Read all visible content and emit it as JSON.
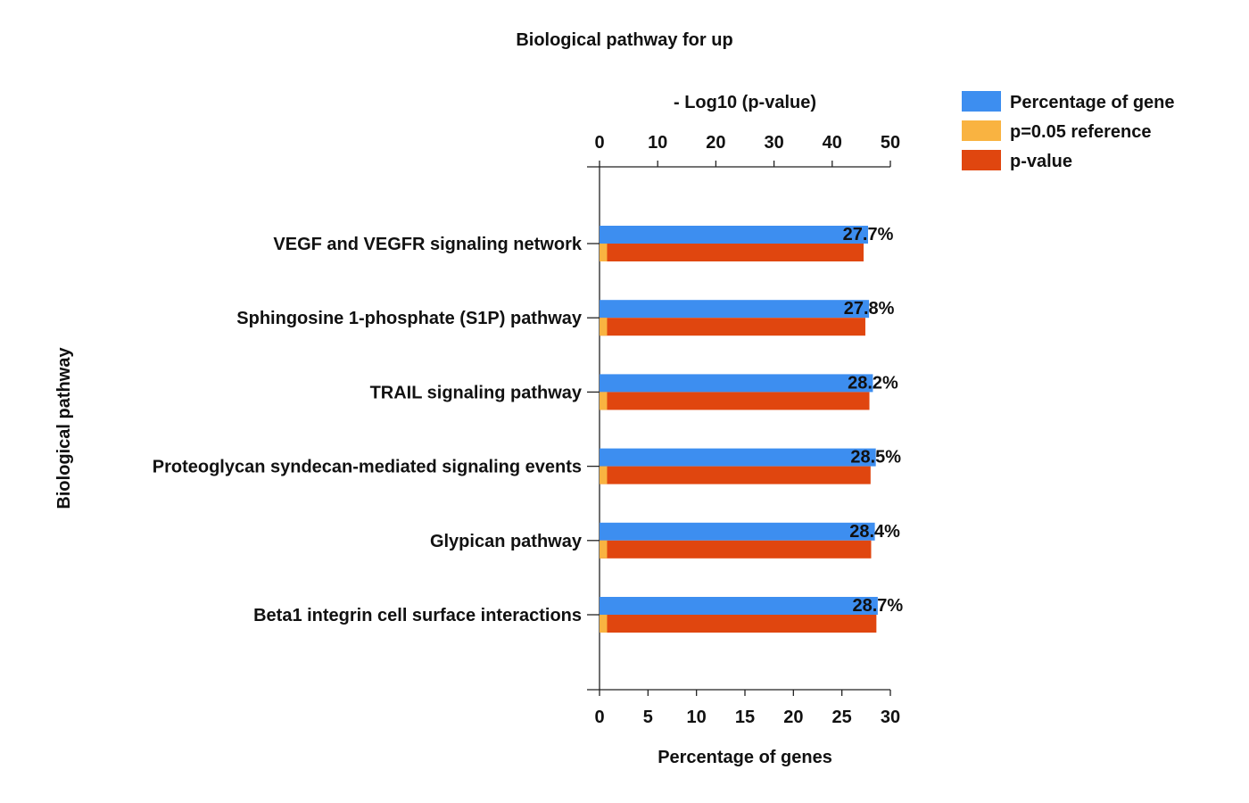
{
  "chart_data": {
    "type": "bar",
    "orientation": "horizontal",
    "title": "Biological pathway for up",
    "ylabel": "Biological pathway",
    "xlabel_bottom": "Percentage of genes",
    "xlabel_top": "- Log10 (p-value)",
    "xlim_bottom": [
      0,
      30
    ],
    "xticks_bottom": [
      0,
      5,
      10,
      15,
      20,
      25,
      30
    ],
    "xlim_top": [
      0,
      50
    ],
    "xticks_top": [
      0,
      10,
      20,
      30,
      40,
      50
    ],
    "categories": [
      "VEGF and VEGFR signaling network",
      "Sphingosine 1-phosphate (S1P) pathway",
      "TRAIL signaling pathway",
      "Proteoglycan syndecan-mediated signaling events",
      "Glypican pathway",
      "Beta1 integrin cell surface interactions"
    ],
    "series": [
      {
        "name": "Percentage of gene",
        "axis": "bottom",
        "color": "#3d8ef0",
        "values": [
          27.7,
          27.8,
          28.2,
          28.5,
          28.4,
          28.7
        ],
        "labels": [
          "27.7%",
          "27.8%",
          "28.2%",
          "28.5%",
          "28.4%",
          "28.7%"
        ]
      },
      {
        "name": "p=0.05 reference",
        "axis": "top",
        "color": "#f9b341",
        "values": [
          1.3,
          1.3,
          1.3,
          1.3,
          1.3,
          1.3
        ]
      },
      {
        "name": "p-value",
        "axis": "top",
        "color": "#e0460f",
        "values": [
          45.4,
          45.7,
          46.4,
          46.6,
          46.7,
          47.6
        ]
      }
    ],
    "legend_position": "top-right",
    "grid": false
  }
}
